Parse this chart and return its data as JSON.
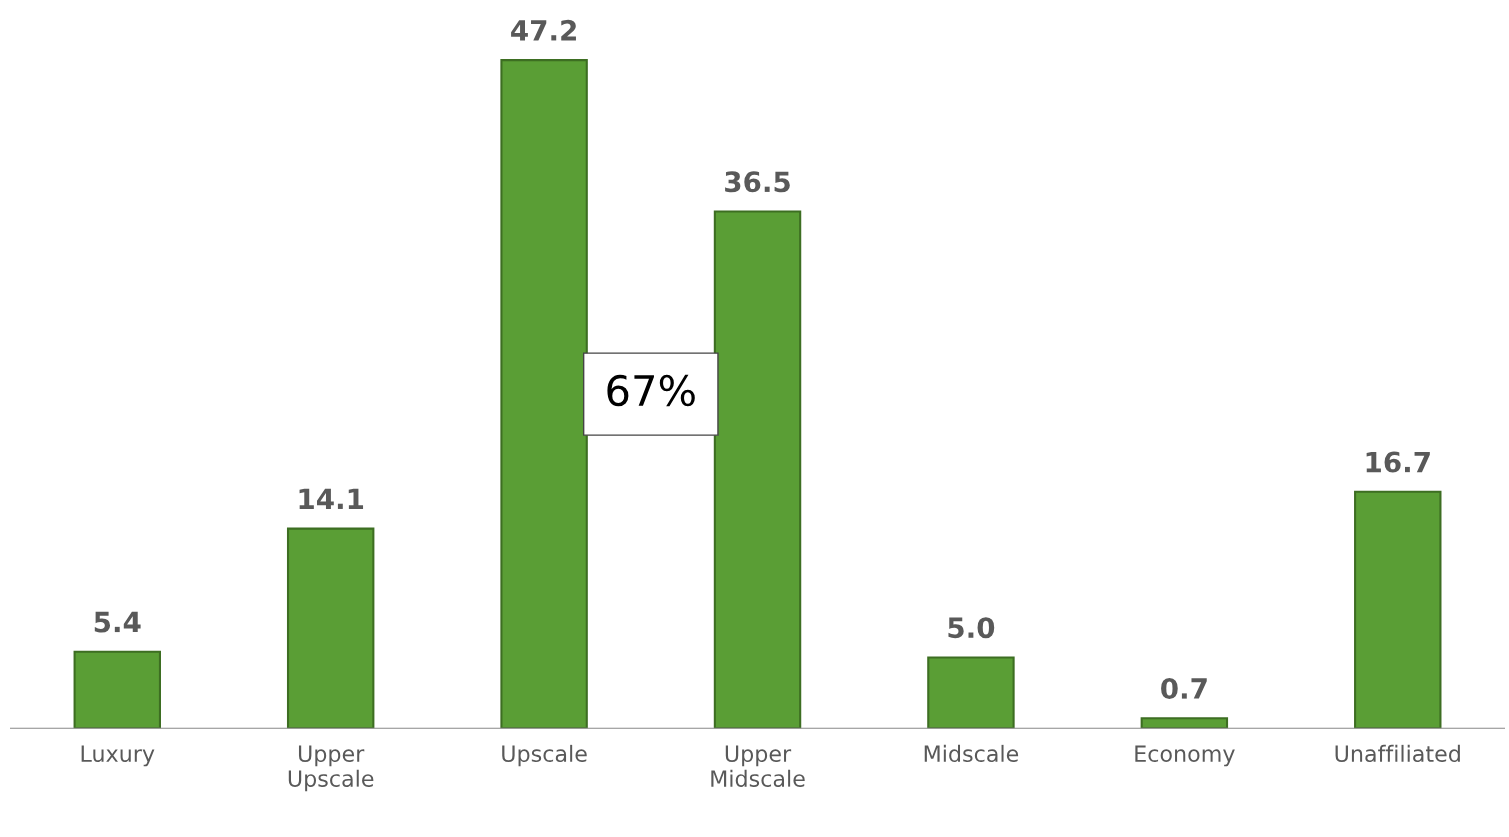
{
  "chart_data": {
    "type": "bar",
    "categories": [
      "Luxury",
      "Upper Upscale",
      "Upscale",
      "Upper Midscale",
      "Midscale",
      "Economy",
      "Unaffiliated"
    ],
    "values": [
      5.4,
      14.1,
      47.2,
      36.5,
      5.0,
      0.7,
      16.7
    ],
    "color": "#5a9e35",
    "value_labels": [
      "5.4",
      "14.1",
      "47.2",
      "36.5",
      "5.0",
      "0.7",
      "16.7"
    ],
    "grid": false,
    "legend": false,
    "annotations": [
      "67%"
    ]
  }
}
